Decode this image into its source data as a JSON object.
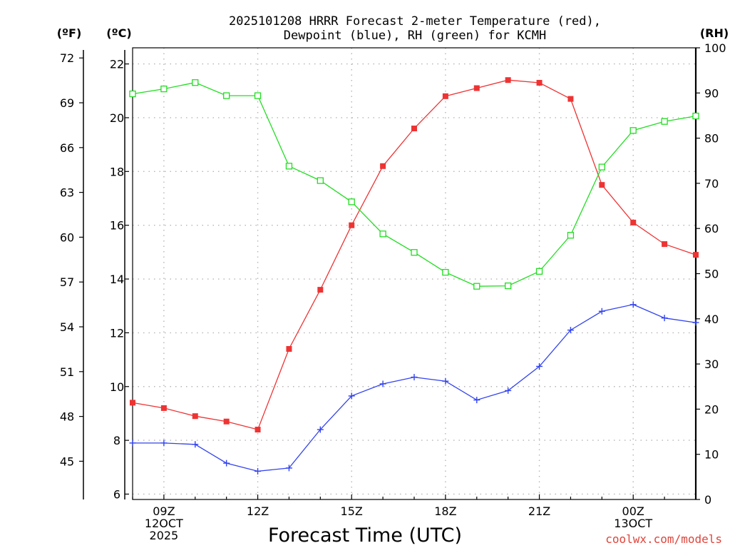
{
  "title_line1": "2025101208 HRRR Forecast 2-meter Temperature (red),",
  "title_line2": "Dewpoint (blue), RH (green) for KCMH",
  "units": {
    "left_f": "(ºF)",
    "left_c": "(ºC)",
    "right_rh": "(RH)"
  },
  "credit": "coolwx.com/models",
  "chart_data": {
    "type": "line",
    "title": "2025101208 HRRR Forecast 2-meter Temperature (red), Dewpoint (blue), RH (green) for KCMH",
    "xlabel": "Forecast Time (UTC)",
    "x_hours": [
      8,
      9,
      10,
      11,
      12,
      13,
      14,
      15,
      16,
      17,
      18,
      19,
      20,
      21,
      22,
      23,
      24,
      25,
      26
    ],
    "xlim": [
      8,
      26
    ],
    "x_ticks": [
      {
        "hour": 9,
        "lines": [
          "09Z",
          "12OCT",
          "2025"
        ]
      },
      {
        "hour": 12,
        "lines": [
          "12Z"
        ]
      },
      {
        "hour": 15,
        "lines": [
          "15Z"
        ]
      },
      {
        "hour": 18,
        "lines": [
          "18Z"
        ]
      },
      {
        "hour": 21,
        "lines": [
          "21Z"
        ]
      },
      {
        "hour": 24,
        "lines": [
          "00Z",
          "13OCT"
        ]
      }
    ],
    "ylim_c": [
      5.8,
      22.6
    ],
    "ticks_c": [
      "6",
      "8",
      "10",
      "12",
      "14",
      "16",
      "18",
      "20",
      "22"
    ],
    "ticks_f": [
      "45",
      "48",
      "51",
      "54",
      "57",
      "60",
      "63",
      "66",
      "69",
      "72"
    ],
    "ylim_rh": [
      0,
      100
    ],
    "ticks_rh": [
      "0",
      "10",
      "20",
      "30",
      "40",
      "50",
      "60",
      "70",
      "80",
      "90",
      "100"
    ],
    "series": [
      {
        "name": "2-meter Temperature",
        "axis": "c",
        "color": "#ee3333",
        "marker": "filled-square",
        "values": [
          9.4,
          9.2,
          8.9,
          8.7,
          8.4,
          11.4,
          13.6,
          16.0,
          18.2,
          19.6,
          20.8,
          21.1,
          21.4,
          21.3,
          20.7,
          17.5,
          16.1,
          15.3,
          14.9
        ]
      },
      {
        "name": "Dewpoint",
        "axis": "c",
        "color": "#3344ee",
        "marker": "plus",
        "values": [
          7.9,
          7.9,
          7.85,
          7.15,
          6.85,
          6.97,
          8.4,
          9.65,
          10.1,
          10.35,
          10.2,
          9.5,
          9.85,
          10.75,
          12.1,
          12.8,
          13.05,
          12.55,
          12.38
        ]
      },
      {
        "name": "RH",
        "axis": "rh",
        "color": "#22dd22",
        "marker": "open-square",
        "values": [
          89.8,
          90.9,
          92.3,
          89.4,
          89.4,
          73.8,
          70.6,
          65.9,
          58.8,
          54.7,
          50.3,
          47.2,
          47.3,
          50.5,
          58.5,
          73.6,
          81.7,
          83.7,
          84.9
        ]
      }
    ]
  }
}
